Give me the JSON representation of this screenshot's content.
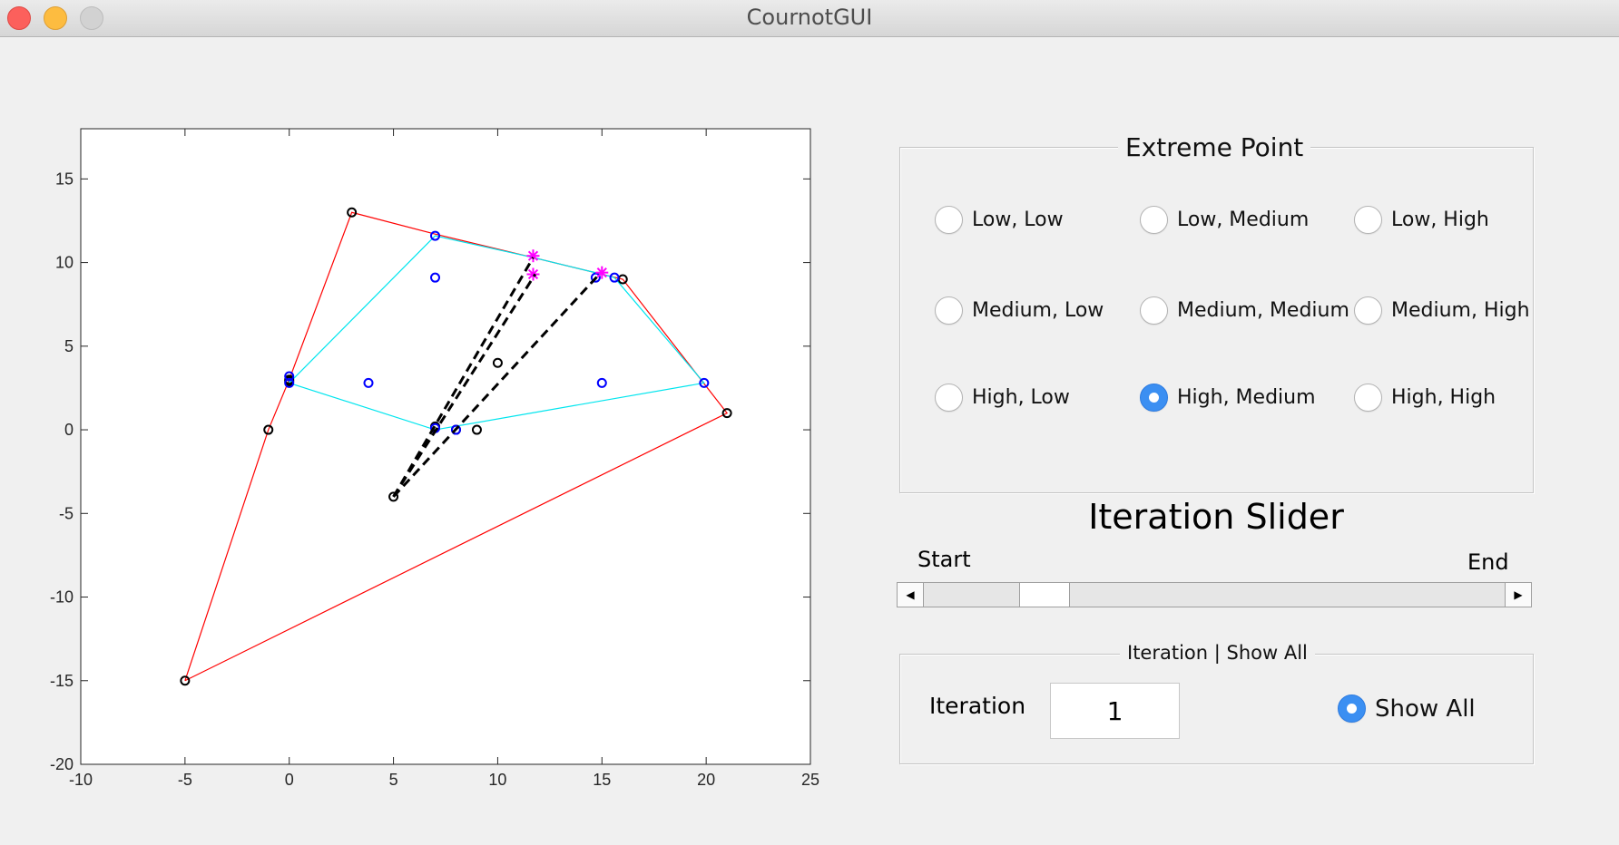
{
  "window": {
    "title": "CournotGUI"
  },
  "chart_data": {
    "type": "scatter",
    "xlim": [
      -10,
      25
    ],
    "ylim": [
      -20,
      18
    ],
    "xticks": [
      -10,
      -5,
      0,
      5,
      10,
      15,
      20,
      25
    ],
    "yticks": [
      -20,
      -15,
      -10,
      -5,
      0,
      5,
      10,
      15
    ],
    "grid": false,
    "series": [
      {
        "kind": "line",
        "color": "#ff0000",
        "x": [
          -5,
          -1,
          0,
          3,
          7,
          11.7,
          15,
          16,
          21,
          -5
        ],
        "y": [
          -15,
          0,
          3,
          13,
          11.7,
          10.3,
          9.3,
          9,
          1,
          -15
        ]
      },
      {
        "kind": "line",
        "color": "#00e5ee",
        "x": [
          0,
          7,
          11.7,
          15,
          15.6,
          19.9,
          7,
          0,
          0
        ],
        "y": [
          2.8,
          11.6,
          10.3,
          9.3,
          9.1,
          2.8,
          0,
          2.8,
          3.2
        ]
      },
      {
        "kind": "points",
        "marker": "circle",
        "color": "#000000",
        "x": [
          -5,
          -1,
          0,
          3,
          16,
          21,
          7,
          8,
          9,
          10,
          5,
          0
        ],
        "y": [
          -15,
          0,
          2.9,
          13,
          9,
          1,
          0.2,
          0,
          0,
          4,
          -4,
          3
        ]
      },
      {
        "kind": "points",
        "marker": "circle",
        "color": "#0000ff",
        "x": [
          0,
          0,
          7,
          7,
          3.8,
          15,
          19.9,
          15.6,
          14.7,
          7,
          8
        ],
        "y": [
          3.2,
          2.8,
          11.6,
          9.1,
          2.8,
          2.8,
          2.8,
          9.1,
          9.1,
          0.1,
          0
        ]
      },
      {
        "kind": "points",
        "marker": "star",
        "color": "#ff00ff",
        "x": [
          11.7,
          11.7,
          15
        ],
        "y": [
          10.4,
          9.3,
          9.4
        ]
      },
      {
        "kind": "line",
        "style": "dashed",
        "color": "#000000",
        "x": [
          5,
          11.7
        ],
        "y": [
          -4,
          10.3
        ]
      },
      {
        "kind": "line",
        "style": "dashed",
        "color": "#000000",
        "x": [
          5,
          11.8
        ],
        "y": [
          -4,
          9.3
        ]
      },
      {
        "kind": "line",
        "style": "dashed",
        "color": "#000000",
        "x": [
          5,
          14.8
        ],
        "y": [
          -4,
          9.2
        ]
      }
    ]
  },
  "extreme_point": {
    "title": "Extreme Point",
    "options": [
      {
        "label": "Low, Low",
        "selected": false
      },
      {
        "label": "Low, Medium",
        "selected": false
      },
      {
        "label": "Low, High",
        "selected": false
      },
      {
        "label": "Medium, Low",
        "selected": false
      },
      {
        "label": "Medium, Medium",
        "selected": false
      },
      {
        "label": "Medium, High",
        "selected": false
      },
      {
        "label": "High, Low",
        "selected": false
      },
      {
        "label": "High, Medium",
        "selected": true
      },
      {
        "label": "High, High",
        "selected": false
      }
    ]
  },
  "slider": {
    "title": "Iteration Slider",
    "start_label": "Start",
    "end_label": "End",
    "value_fraction": 0.18
  },
  "iteration_panel": {
    "title": "Iteration | Show All",
    "iteration_label": "Iteration",
    "iteration_value": "1",
    "show_all_label": "Show All",
    "show_all_selected": true
  },
  "colors": {
    "accent": "#3b8ff2"
  }
}
